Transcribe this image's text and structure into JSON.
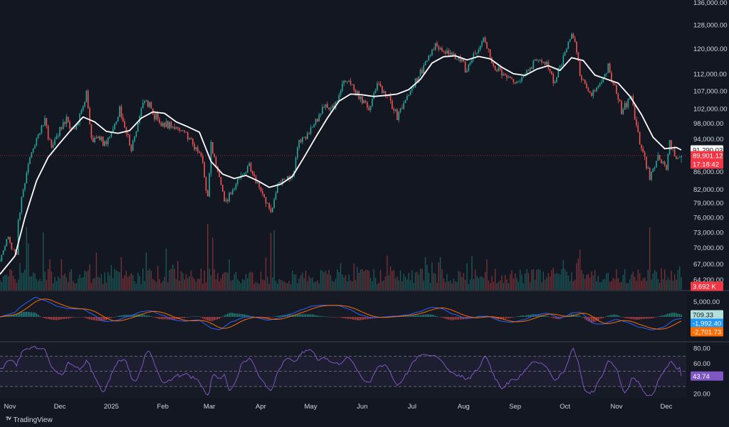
{
  "brand": "TradingView",
  "chart_data": {
    "type": "candlestick",
    "panes": [
      {
        "name": "price",
        "y_ticks": [
          "136,000.00",
          "128,000.00",
          "120,000.00",
          "112,000.00",
          "107,000.00",
          "102,000.00",
          "98,000.00",
          "94,000.00",
          "86,000.00",
          "82,000.00",
          "79,000.00",
          "76,000.00",
          "73,000.00",
          "70,000.00",
          "67,000.00",
          "64,200.00"
        ],
        "y_tick_values": [
          136000,
          128000,
          120000,
          112000,
          107000,
          102000,
          98000,
          94000,
          86000,
          82000,
          79000,
          76000,
          73000,
          70000,
          67000,
          64200
        ],
        "ylim": [
          62500,
          137000
        ],
        "scale": "log",
        "tags": {
          "ma_value": "91,290.03",
          "last_price": "89,901.12",
          "countdown": "17:18:42",
          "volume": "3.692 K"
        },
        "ma_value_num": 91290,
        "last_price_num": 89901,
        "moving_average_keypoints": [
          [
            "2024-10-26",
            65200
          ],
          [
            "2024-11-04",
            68500
          ],
          [
            "2024-11-10",
            76000
          ],
          [
            "2024-11-17",
            84000
          ],
          [
            "2024-11-24",
            89500
          ],
          [
            "2024-12-01",
            93000
          ],
          [
            "2024-12-08",
            96500
          ],
          [
            "2024-12-15",
            99800
          ],
          [
            "2024-12-22",
            98500
          ],
          [
            "2024-12-29",
            96000
          ],
          [
            "2025-01-05",
            95500
          ],
          [
            "2025-01-12",
            96200
          ],
          [
            "2025-01-19",
            99500
          ],
          [
            "2025-01-26",
            101200
          ],
          [
            "2025-02-02",
            100800
          ],
          [
            "2025-02-09",
            98500
          ],
          [
            "2025-02-16",
            97200
          ],
          [
            "2025-02-23",
            95800
          ],
          [
            "2025-03-02",
            88500
          ],
          [
            "2025-03-09",
            85500
          ],
          [
            "2025-03-16",
            84500
          ],
          [
            "2025-03-23",
            85200
          ],
          [
            "2025-03-30",
            84000
          ],
          [
            "2025-04-06",
            82500
          ],
          [
            "2025-04-13",
            83200
          ],
          [
            "2025-04-20",
            85000
          ],
          [
            "2025-04-27",
            89500
          ],
          [
            "2025-05-04",
            94500
          ],
          [
            "2025-05-11",
            99500
          ],
          [
            "2025-05-18",
            104200
          ],
          [
            "2025-05-25",
            106200
          ],
          [
            "2025-06-01",
            106000
          ],
          [
            "2025-06-08",
            105500
          ],
          [
            "2025-06-15",
            105800
          ],
          [
            "2025-06-22",
            106200
          ],
          [
            "2025-06-29",
            107500
          ],
          [
            "2025-07-06",
            110500
          ],
          [
            "2025-07-13",
            115500
          ],
          [
            "2025-07-20",
            117500
          ],
          [
            "2025-07-27",
            117800
          ],
          [
            "2025-08-03",
            116500
          ],
          [
            "2025-08-10",
            117600
          ],
          [
            "2025-08-17",
            116800
          ],
          [
            "2025-08-24",
            114200
          ],
          [
            "2025-08-31",
            112200
          ],
          [
            "2025-09-07",
            111700
          ],
          [
            "2025-09-14",
            113600
          ],
          [
            "2025-09-21",
            114700
          ],
          [
            "2025-09-28",
            113200
          ],
          [
            "2025-10-05",
            117200
          ],
          [
            "2025-10-12",
            116300
          ],
          [
            "2025-10-19",
            111800
          ],
          [
            "2025-10-26",
            110600
          ],
          [
            "2025-11-02",
            109400
          ],
          [
            "2025-11-09",
            105600
          ],
          [
            "2025-11-16",
            100500
          ],
          [
            "2025-11-23",
            94500
          ],
          [
            "2025-11-30",
            91600
          ],
          [
            "2025-12-07",
            91900
          ],
          [
            "2025-12-10",
            91290
          ]
        ],
        "price_keypoints": [
          [
            "2024-10-26",
            67500
          ],
          [
            "2024-10-31",
            72000
          ],
          [
            "2024-11-05",
            68500
          ],
          [
            "2024-11-06",
            75000
          ],
          [
            "2024-11-13",
            90000
          ],
          [
            "2024-11-22",
            98500
          ],
          [
            "2024-11-26",
            92000
          ],
          [
            "2024-12-05",
            99500
          ],
          [
            "2024-12-10",
            96000
          ],
          [
            "2024-12-17",
            106000
          ],
          [
            "2024-12-20",
            94500
          ],
          [
            "2024-12-30",
            93000
          ],
          [
            "2025-01-06",
            101500
          ],
          [
            "2025-01-13",
            91500
          ],
          [
            "2025-01-21",
            106000
          ],
          [
            "2025-01-27",
            100000
          ],
          [
            "2025-02-03",
            97500
          ],
          [
            "2025-02-14",
            96000
          ],
          [
            "2025-02-24",
            90000
          ],
          [
            "2025-02-28",
            80000
          ],
          [
            "2025-03-02",
            93000
          ],
          [
            "2025-03-10",
            79500
          ],
          [
            "2025-03-18",
            84000
          ],
          [
            "2025-03-25",
            87500
          ],
          [
            "2025-03-31",
            82500
          ],
          [
            "2025-04-07",
            76800
          ],
          [
            "2025-04-12",
            84500
          ],
          [
            "2025-04-20",
            85000
          ],
          [
            "2025-04-24",
            93500
          ],
          [
            "2025-05-01",
            96500
          ],
          [
            "2025-05-09",
            103000
          ],
          [
            "2025-05-15",
            102500
          ],
          [
            "2025-05-22",
            111000
          ],
          [
            "2025-05-28",
            107500
          ],
          [
            "2025-06-05",
            102000
          ],
          [
            "2025-06-10",
            109500
          ],
          [
            "2025-06-18",
            104500
          ],
          [
            "2025-06-22",
            100500
          ],
          [
            "2025-06-30",
            107000
          ],
          [
            "2025-07-10",
            116000
          ],
          [
            "2025-07-14",
            121000
          ],
          [
            "2025-07-22",
            118500
          ],
          [
            "2025-07-31",
            116500
          ],
          [
            "2025-08-02",
            112500
          ],
          [
            "2025-08-13",
            123500
          ],
          [
            "2025-08-20",
            113000
          ],
          [
            "2025-08-28",
            111000
          ],
          [
            "2025-09-01",
            108500
          ],
          [
            "2025-09-12",
            115500
          ],
          [
            "2025-09-18",
            117000
          ],
          [
            "2025-09-25",
            109500
          ],
          [
            "2025-10-03",
            122500
          ],
          [
            "2025-10-06",
            125000
          ],
          [
            "2025-10-10",
            111500
          ],
          [
            "2025-10-17",
            106500
          ],
          [
            "2025-10-22",
            108500
          ],
          [
            "2025-10-27",
            114500
          ],
          [
            "2025-11-04",
            101500
          ],
          [
            "2025-11-10",
            105500
          ],
          [
            "2025-11-14",
            95000
          ],
          [
            "2025-11-21",
            84500
          ],
          [
            "2025-11-26",
            90000
          ],
          [
            "2025-12-01",
            86500
          ],
          [
            "2025-12-03",
            93000
          ],
          [
            "2025-12-07",
            89000
          ],
          [
            "2025-12-10",
            89901
          ]
        ]
      },
      {
        "name": "volume",
        "last_value": "3.692 K",
        "spike_dates": [
          "2024-11-11",
          "2024-11-12",
          "2024-11-21",
          "2025-02-03",
          "2025-02-28",
          "2025-03-03",
          "2025-04-07",
          "2025-04-09",
          "2025-10-10",
          "2025-11-21"
        ]
      },
      {
        "name": "macd",
        "y_ticks": [
          "5,000.00"
        ],
        "y_tick_values": [
          5000
        ],
        "tags": {
          "histogram": "709.33",
          "macd": "-1,992.40",
          "signal": "-2,701.73"
        },
        "last_values": [
          709.33,
          -1992.4,
          -2701.73
        ]
      },
      {
        "name": "rsi",
        "y_ticks": [
          "80.00",
          "60.00",
          "20.00"
        ],
        "y_tick_values": [
          80,
          60,
          20
        ],
        "levels": [
          70,
          50,
          30
        ],
        "ylim": [
          15,
          88
        ],
        "tags": {
          "rsi": "43.74"
        },
        "last_value": 43.74
      }
    ],
    "x_axis": {
      "labels": [
        "Nov",
        "Dec",
        "2025",
        "Feb",
        "Mar",
        "Apr",
        "May",
        "Jun",
        "Jul",
        "Aug",
        "Sep",
        "Oct",
        "Nov",
        "Dec"
      ],
      "label_dates": [
        "2024-11-01",
        "2024-12-01",
        "2025-01-01",
        "2025-02-01",
        "2025-03-01",
        "2025-04-01",
        "2025-05-01",
        "2025-06-01",
        "2025-07-01",
        "2025-08-01",
        "2025-09-01",
        "2025-10-01",
        "2025-11-01",
        "2025-12-01"
      ],
      "range": [
        "2024-10-26",
        "2025-12-13"
      ]
    },
    "colors": {
      "background": "#131722",
      "up": "#26a69a",
      "down": "#ef5350",
      "moving_average": "#ffffff",
      "macd_line": "#2962ff",
      "signal_line": "#ff6d00",
      "rsi_line": "#7e57c2",
      "last_price_tag": "#f23645",
      "macd_tag": "#2196f3",
      "signal_tag": "#ff6d00",
      "histogram_tag": "#b2dfdb"
    }
  }
}
